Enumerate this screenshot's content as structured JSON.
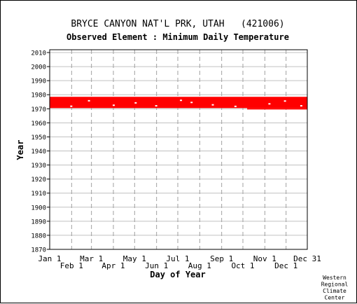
{
  "chart_data": {
    "type": "scatter",
    "title": "BRYCE CANYON NAT'L PRK, UTAH   (421006)",
    "subtitle": "Observed Element : Minimum Daily Temperature",
    "xlabel": "Day of Year",
    "ylabel": "Year",
    "xlim": [
      1,
      365
    ],
    "ylim": [
      1870,
      2012
    ],
    "yticks": [
      1870,
      1880,
      1890,
      1900,
      1910,
      1920,
      1930,
      1940,
      1950,
      1960,
      1970,
      1980,
      1990,
      2000,
      2010
    ],
    "xticks_top_row": [
      {
        "label": "Jan 1",
        "day": 1
      },
      {
        "label": "Mar 1",
        "day": 60
      },
      {
        "label": "May 1",
        "day": 121
      },
      {
        "label": "Jul 1",
        "day": 182
      },
      {
        "label": "Sep 1",
        "day": 244
      },
      {
        "label": "Nov 1",
        "day": 305
      },
      {
        "label": "Dec 31",
        "day": 365
      }
    ],
    "xticks_bottom_row": [
      {
        "label": "Feb 1",
        "day": 32
      },
      {
        "label": "Apr 1",
        "day": 91
      },
      {
        "label": "Jun 1",
        "day": 152
      },
      {
        "label": "Aug 1",
        "day": 213
      },
      {
        "label": "Oct 1",
        "day": 274
      },
      {
        "label": "Dec 1",
        "day": 335
      }
    ],
    "vertical_gridlines_days": [
      32,
      60,
      91,
      121,
      152,
      182,
      213,
      244,
      274,
      305,
      335
    ],
    "grid": true,
    "series": [
      {
        "color": "#ff0000",
        "year_start": 1971,
        "year_end": 1978,
        "day_start": 1,
        "day_end": 365,
        "extends_to_1970_from_day": 280
      }
    ],
    "credit": [
      "Western",
      "Regional",
      "Climate",
      "Center"
    ]
  }
}
